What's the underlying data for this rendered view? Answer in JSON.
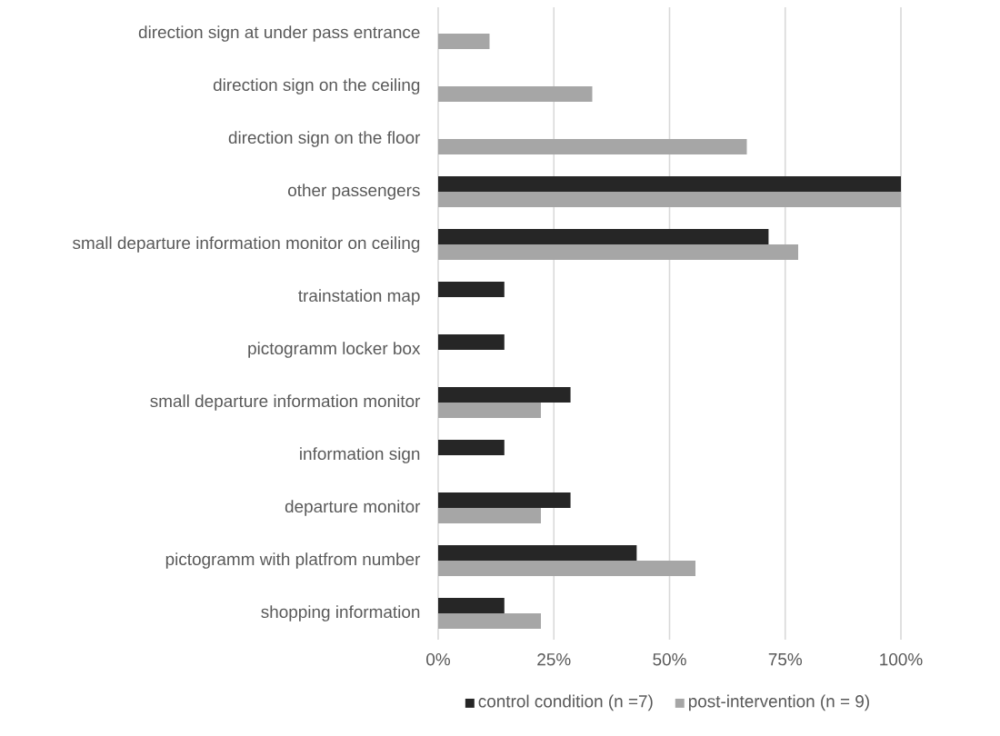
{
  "chart_data": {
    "type": "bar",
    "orientation": "horizontal",
    "categories": [
      "direction sign at under pass entrance",
      "direction sign on the ceiling",
      "direction sign on the floor",
      "other passengers",
      "small departure information monitor on ceiling",
      "trainstation map",
      "pictogramm locker box",
      "small departure information monitor",
      "information sign",
      "departure monitor",
      "pictogramm with platfrom number",
      "shopping information"
    ],
    "series": [
      {
        "name": "control condition (n =7)",
        "color": "#262626",
        "values": [
          null,
          null,
          null,
          100,
          71.4,
          14.3,
          14.3,
          28.6,
          14.3,
          28.6,
          42.9,
          14.3
        ]
      },
      {
        "name": "post-intervention (n = 9)",
        "color": "#a6a6a6",
        "values": [
          11.1,
          33.3,
          66.7,
          100,
          77.8,
          null,
          null,
          22.2,
          null,
          22.2,
          55.6,
          22.2
        ]
      }
    ],
    "xlim": [
      0,
      100
    ],
    "xticks": [
      {
        "value": 0,
        "label": "0%"
      },
      {
        "value": 25,
        "label": "25%"
      },
      {
        "value": 50,
        "label": "50%"
      },
      {
        "value": 75,
        "label": "75%"
      },
      {
        "value": 100,
        "label": "100%"
      }
    ],
    "grid": "x",
    "legend": "bottom"
  }
}
